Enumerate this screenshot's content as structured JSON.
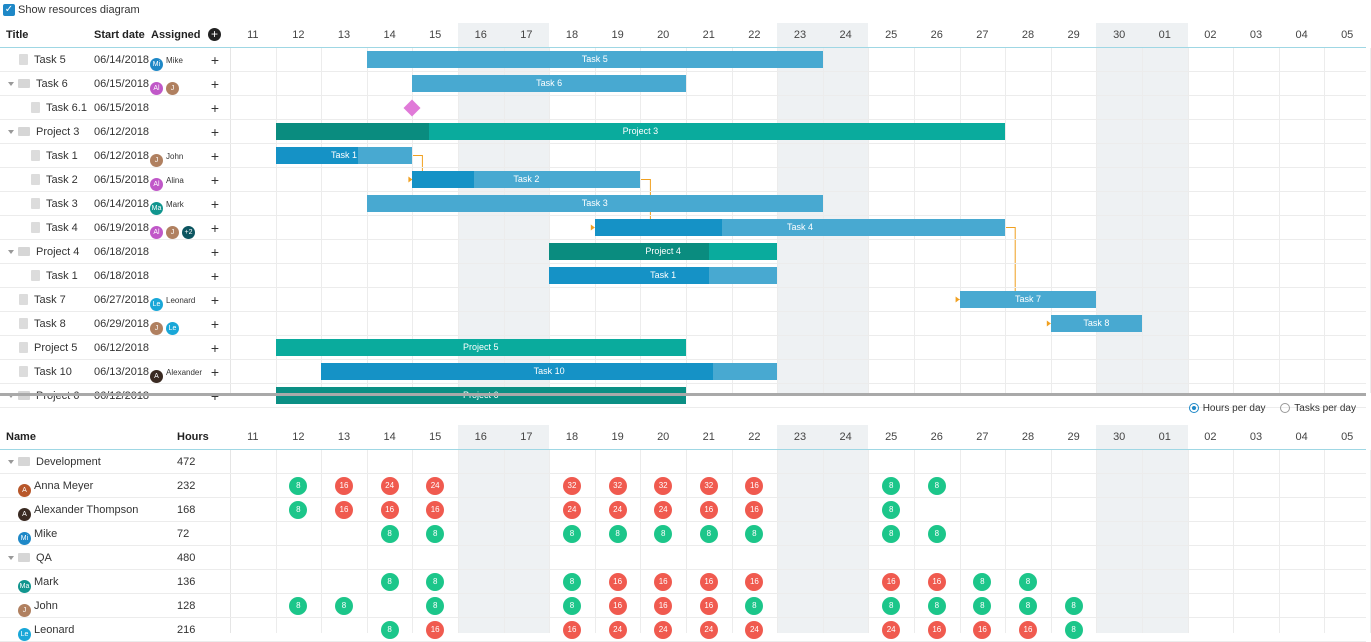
{
  "toolbar": {
    "show_resources_label": "Show resources diagram"
  },
  "gantt": {
    "headers": {
      "title": "Title",
      "start_date": "Start date",
      "assigned": "Assigned"
    },
    "days": [
      "11",
      "12",
      "13",
      "14",
      "15",
      "16",
      "17",
      "18",
      "19",
      "20",
      "21",
      "22",
      "23",
      "24",
      "25",
      "26",
      "27",
      "28",
      "29",
      "30",
      "01",
      "02",
      "03",
      "04",
      "05"
    ],
    "tasks": [
      {
        "title": "Task 5",
        "start": "06/14/2018",
        "indent": 1,
        "kind": "doc",
        "assignees": [
          {
            "initials": "Mi",
            "color": "#1e88c7",
            "name": "Mike"
          }
        ]
      },
      {
        "title": "Task 6",
        "start": "06/15/2018",
        "indent": 0,
        "kind": "folder",
        "assignees": [
          {
            "initials": "Al",
            "color": "#c058c8",
            "name": ""
          },
          {
            "initials": "J",
            "color": "#b08060",
            "name": ""
          }
        ]
      },
      {
        "title": "Task 6.1",
        "start": "06/15/2018",
        "indent": 2,
        "kind": "doc",
        "assignees": []
      },
      {
        "title": "Project 3",
        "start": "06/12/2018",
        "indent": 0,
        "kind": "folder",
        "assignees": []
      },
      {
        "title": "Task 1",
        "start": "06/12/2018",
        "indent": 2,
        "kind": "doc",
        "assignees": [
          {
            "initials": "J",
            "color": "#b08060",
            "name": "John"
          }
        ]
      },
      {
        "title": "Task 2",
        "start": "06/15/2018",
        "indent": 2,
        "kind": "doc",
        "assignees": [
          {
            "initials": "Al",
            "color": "#c058c8",
            "name": "Alina"
          }
        ]
      },
      {
        "title": "Task 3",
        "start": "06/14/2018",
        "indent": 2,
        "kind": "doc",
        "assignees": [
          {
            "initials": "Ma",
            "color": "#11958e",
            "name": "Mark"
          }
        ]
      },
      {
        "title": "Task 4",
        "start": "06/19/2018",
        "indent": 2,
        "kind": "doc",
        "assignees": [
          {
            "initials": "Al",
            "color": "#c058c8",
            "name": ""
          },
          {
            "initials": "J",
            "color": "#b08060",
            "name": ""
          },
          {
            "initials": "+2",
            "color": "#0c5560",
            "name": ""
          }
        ]
      },
      {
        "title": "Project 4",
        "start": "06/18/2018",
        "indent": 0,
        "kind": "folder",
        "assignees": []
      },
      {
        "title": "Task 1",
        "start": "06/18/2018",
        "indent": 2,
        "kind": "doc",
        "assignees": []
      },
      {
        "title": "Task 7",
        "start": "06/27/2018",
        "indent": 1,
        "kind": "doc",
        "assignees": [
          {
            "initials": "Le",
            "color": "#19a7d8",
            "name": "Leonard"
          }
        ]
      },
      {
        "title": "Task 8",
        "start": "06/29/2018",
        "indent": 1,
        "kind": "doc",
        "assignees": [
          {
            "initials": "J",
            "color": "#b08060",
            "name": ""
          },
          {
            "initials": "Le",
            "color": "#19a7d8",
            "name": ""
          }
        ]
      },
      {
        "title": "Project 5",
        "start": "06/12/2018",
        "indent": 1,
        "kind": "doc",
        "assignees": []
      },
      {
        "title": "Task 10",
        "start": "06/13/2018",
        "indent": 1,
        "kind": "doc",
        "assignees": [
          {
            "initials": "A",
            "color": "#3a2a22",
            "name": "Alexander"
          }
        ]
      },
      {
        "title": "Project 6",
        "start": "06/12/2018",
        "indent": 0,
        "kind": "folder",
        "assignees": []
      }
    ],
    "bars": [
      {
        "row": 0,
        "start": 3,
        "end": 12,
        "label": "Task 5",
        "color": "#48a9d1",
        "progress": 0,
        "prog_color": "#1d91c4"
      },
      {
        "row": 1,
        "start": 4,
        "end": 9,
        "label": "Task 6",
        "color": "#48a9d1",
        "progress": 0,
        "prog_color": "#1d91c4"
      },
      {
        "row": 3,
        "start": 1,
        "end": 16,
        "label": "Project 3",
        "color": "#0aab9d",
        "progress": 0.21,
        "prog_color": "#0a8c7f"
      },
      {
        "row": 4,
        "start": 1,
        "end": 3,
        "label": "Task 1",
        "color": "#48a9d1",
        "progress": 0.6,
        "prog_color": "#1592c6"
      },
      {
        "row": 5,
        "start": 4,
        "end": 8,
        "label": "Task 2",
        "color": "#48a9d1",
        "progress": 0.27,
        "prog_color": "#1592c6"
      },
      {
        "row": 6,
        "start": 3,
        "end": 12,
        "label": "Task 3",
        "color": "#48a9d1",
        "progress": 0,
        "prog_color": "#1592c6"
      },
      {
        "row": 7,
        "start": 8,
        "end": 16,
        "label": "Task 4",
        "color": "#48a9d1",
        "progress": 0.31,
        "prog_color": "#1592c6"
      },
      {
        "row": 8,
        "start": 7,
        "end": 11,
        "label": "Project 4",
        "color": "#0aab9d",
        "progress": 0.7,
        "prog_color": "#0a8c7f"
      },
      {
        "row": 9,
        "start": 7,
        "end": 11,
        "label": "Task 1",
        "color": "#48a9d1",
        "progress": 0.7,
        "prog_color": "#1592c6"
      },
      {
        "row": 10,
        "start": 16,
        "end": 18,
        "label": "Task 7",
        "color": "#48a9d1",
        "progress": 0,
        "prog_color": "#1592c6"
      },
      {
        "row": 11,
        "start": 18,
        "end": 19,
        "label": "Task 8",
        "color": "#48a9d1",
        "progress": 0,
        "prog_color": "#1592c6"
      },
      {
        "row": 12,
        "start": 1,
        "end": 9,
        "label": "Project 5",
        "color": "#0aab9d",
        "progress": 0,
        "prog_color": "#0a8c7f"
      },
      {
        "row": 13,
        "start": 2,
        "end": 11,
        "label": "Task 10",
        "color": "#48a9d1",
        "progress": 0.86,
        "prog_color": "#1592c6"
      },
      {
        "row": 14,
        "start": 1,
        "end": 9,
        "label": "Project 6",
        "color": "#0b8f84",
        "progress": 0,
        "prog_color": "#0a8c7f"
      }
    ],
    "milestone": {
      "row": 2,
      "day": 4,
      "color": "#e07ad8"
    }
  },
  "resources": {
    "radio_hours": "Hours per day",
    "radio_tasks": "Tasks per day",
    "headers": {
      "name": "Name",
      "hours": "Hours"
    },
    "rows": [
      {
        "name": "Development",
        "hours": "472",
        "kind": "group",
        "cells": []
      },
      {
        "name": "Anna Meyer",
        "hours": "232",
        "kind": "person",
        "avatar": {
          "initials": "A",
          "color": "#b8572a"
        },
        "cells": [
          [
            1,
            "8"
          ],
          [
            2,
            "16"
          ],
          [
            3,
            "24"
          ],
          [
            4,
            "24"
          ],
          [
            7,
            "32"
          ],
          [
            8,
            "32"
          ],
          [
            9,
            "32"
          ],
          [
            10,
            "32"
          ],
          [
            11,
            "16"
          ],
          [
            14,
            "8"
          ],
          [
            15,
            "8"
          ]
        ]
      },
      {
        "name": "Alexander Thompson",
        "hours": "168",
        "kind": "person",
        "avatar": {
          "initials": "A",
          "color": "#3a2a22"
        },
        "cells": [
          [
            1,
            "8"
          ],
          [
            2,
            "16"
          ],
          [
            3,
            "16"
          ],
          [
            4,
            "16"
          ],
          [
            7,
            "24"
          ],
          [
            8,
            "24"
          ],
          [
            9,
            "24"
          ],
          [
            10,
            "16"
          ],
          [
            11,
            "16"
          ],
          [
            14,
            "8"
          ]
        ]
      },
      {
        "name": "Mike",
        "hours": "72",
        "kind": "person",
        "avatar": {
          "initials": "Mi",
          "color": "#1e88c7"
        },
        "cells": [
          [
            3,
            "8"
          ],
          [
            4,
            "8"
          ],
          [
            7,
            "8"
          ],
          [
            8,
            "8"
          ],
          [
            9,
            "8"
          ],
          [
            10,
            "8"
          ],
          [
            11,
            "8"
          ],
          [
            14,
            "8"
          ],
          [
            15,
            "8"
          ]
        ]
      },
      {
        "name": "QA",
        "hours": "480",
        "kind": "group",
        "cells": []
      },
      {
        "name": "Mark",
        "hours": "136",
        "kind": "person",
        "avatar": {
          "initials": "Ma",
          "color": "#11958e"
        },
        "cells": [
          [
            3,
            "8"
          ],
          [
            4,
            "8"
          ],
          [
            7,
            "8"
          ],
          [
            8,
            "16"
          ],
          [
            9,
            "16"
          ],
          [
            10,
            "16"
          ],
          [
            11,
            "16"
          ],
          [
            14,
            "16"
          ],
          [
            15,
            "16"
          ],
          [
            16,
            "8"
          ],
          [
            17,
            "8"
          ]
        ]
      },
      {
        "name": "John",
        "hours": "128",
        "kind": "person",
        "avatar": {
          "initials": "J",
          "color": "#b08060"
        },
        "cells": [
          [
            1,
            "8"
          ],
          [
            2,
            "8"
          ],
          [
            4,
            "8"
          ],
          [
            7,
            "8"
          ],
          [
            8,
            "16"
          ],
          [
            9,
            "16"
          ],
          [
            10,
            "16"
          ],
          [
            11,
            "8"
          ],
          [
            14,
            "8"
          ],
          [
            15,
            "8"
          ],
          [
            16,
            "8"
          ],
          [
            17,
            "8"
          ],
          [
            18,
            "8"
          ]
        ]
      },
      {
        "name": "Leonard",
        "hours": "216",
        "kind": "person",
        "avatar": {
          "initials": "Le",
          "color": "#19a7d8"
        },
        "cells": [
          [
            3,
            "8"
          ],
          [
            4,
            "16"
          ],
          [
            7,
            "16"
          ],
          [
            8,
            "24"
          ],
          [
            9,
            "24"
          ],
          [
            10,
            "24"
          ],
          [
            11,
            "24"
          ],
          [
            14,
            "24"
          ],
          [
            15,
            "16"
          ],
          [
            16,
            "16"
          ],
          [
            17,
            "16"
          ],
          [
            18,
            "8"
          ]
        ]
      }
    ]
  },
  "colors": {
    "low": "#1cc68a",
    "high": "#f05a4f",
    "accent": "#1e88c7"
  }
}
